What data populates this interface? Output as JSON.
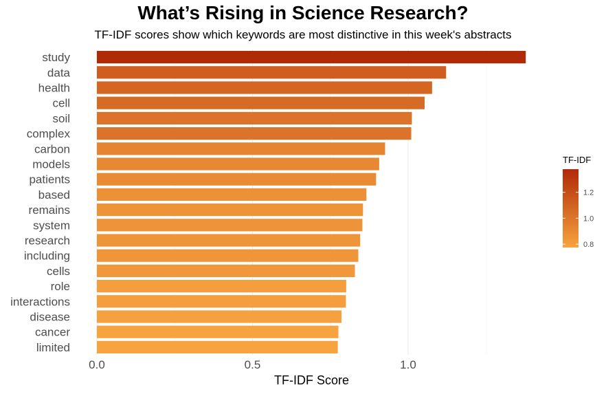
{
  "chart_data": {
    "type": "bar",
    "orientation": "horizontal",
    "title": "What’s Rising in Science Research?",
    "subtitle": "TF-IDF scores show which keywords are most distinctive in this week's abstracts",
    "xlabel": "TF-IDF Score",
    "ylabel": "",
    "xlim": [
      0,
      1.38
    ],
    "xticks": [
      0.0,
      0.5,
      1.0
    ],
    "xtick_labels": [
      "0.0",
      "0.5",
      "1.0"
    ],
    "grid": true,
    "categories": [
      "study",
      "data",
      "health",
      "cell",
      "soil",
      "complex",
      "carbon",
      "models",
      "patients",
      "based",
      "remains",
      "system",
      "research",
      "including",
      "cells",
      "role",
      "interactions",
      "disease",
      "cancer",
      "limited"
    ],
    "values": [
      1.378,
      1.122,
      1.077,
      1.053,
      1.012,
      1.01,
      0.926,
      0.907,
      0.897,
      0.866,
      0.855,
      0.853,
      0.846,
      0.84,
      0.829,
      0.801,
      0.8,
      0.786,
      0.776,
      0.774
    ],
    "color_scale": {
      "title": "TF-IDF",
      "low_color": "#F7A340",
      "high_color": "#B02A07",
      "min": 0.774,
      "max": 1.378,
      "ticks": [
        0.8,
        1.0,
        1.2
      ],
      "tick_labels": [
        "0.8",
        "1.0",
        "1.2"
      ],
      "legend_position": "right"
    }
  }
}
